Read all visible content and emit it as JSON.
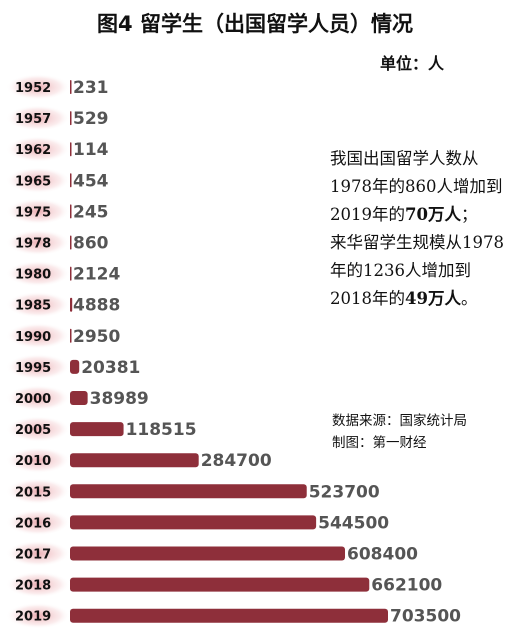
{
  "header": {
    "title": "图4 留学生（出国留学人员）情况",
    "unit": "单位：人"
  },
  "note": {
    "line1_pre": "我国出国留学人数从1978年的860人增加到2019年的",
    "line1_bold": "70万人",
    "line1_post": "；",
    "line2_pre": "来华留学生规模从1978年的1236人增加到2018年的",
    "line2_bold": "49万人",
    "line2_post": "。"
  },
  "source": {
    "data_source": "数据来源：国家统计局",
    "made_by": "制图：第一财经"
  },
  "colors": {
    "bar": "#8e2f3a",
    "year_glow": "#e8a0a6",
    "value_text": "#555555"
  },
  "chart_data": {
    "type": "bar",
    "orientation": "horizontal",
    "categories": [
      "1952",
      "1957",
      "1962",
      "1965",
      "1975",
      "1978",
      "1980",
      "1985",
      "1990",
      "1995",
      "2000",
      "2005",
      "2010",
      "2015",
      "2016",
      "2017",
      "2018",
      "2019"
    ],
    "values": [
      231,
      529,
      114,
      454,
      245,
      860,
      2124,
      4888,
      2950,
      20381,
      38989,
      118515,
      284700,
      523700,
      544500,
      608400,
      662100,
      703500
    ],
    "value_labels": [
      "231",
      "529",
      "114",
      "454",
      "245",
      "860",
      "2124",
      "4888",
      "2950",
      "20381",
      "38989",
      "118515",
      "284700",
      "523700",
      "544500",
      "608400",
      "662100",
      "703500"
    ],
    "title": "图4 留学生（出国留学人员）情况",
    "xlabel": "",
    "ylabel": "",
    "grid": false
  }
}
